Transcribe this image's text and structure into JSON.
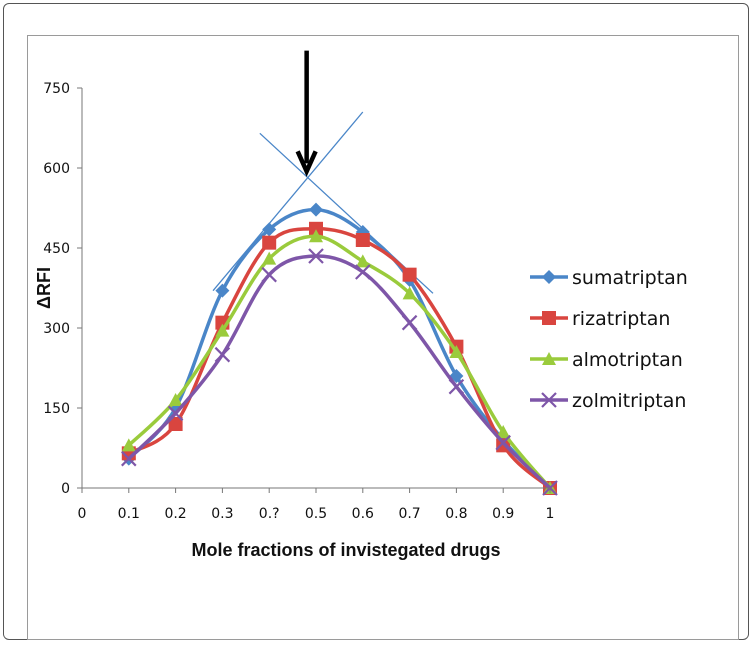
{
  "chart_data": {
    "type": "line",
    "title": "",
    "xlabel": "Mole fractions of invistegated drugs",
    "ylabel": "ΔRFI",
    "x_tick_labels": [
      "0",
      "0.1",
      "0.2",
      "0.3",
      "0.?",
      "0.5",
      "0.6",
      "0.7",
      "0.8",
      "0.9",
      "1"
    ],
    "y_tick_labels": [
      "0",
      "150",
      "300",
      "450",
      "600",
      "750"
    ],
    "xlim": [
      0,
      1
    ],
    "ylim": [
      0,
      750
    ],
    "legend_position": "right",
    "x": [
      0.1,
      0.2,
      0.3,
      0.4,
      0.5,
      0.6,
      0.7,
      0.8,
      0.9,
      1.0
    ],
    "series": [
      {
        "name": "sumatriptan",
        "color": "#4a86c8",
        "marker": "diamond",
        "values": [
          55,
          150,
          370,
          485,
          522,
          480,
          390,
          210,
          90,
          0
        ]
      },
      {
        "name": "rizatriptan",
        "color": "#d9453f",
        "marker": "square",
        "values": [
          65,
          120,
          310,
          460,
          486,
          465,
          400,
          265,
          80,
          0
        ]
      },
      {
        "name": "almotriptan",
        "color": "#9acb3c",
        "marker": "triangle",
        "values": [
          80,
          165,
          295,
          430,
          472,
          425,
          365,
          255,
          105,
          0
        ]
      },
      {
        "name": "zolmitriptan",
        "color": "#7e56a8",
        "marker": "x",
        "values": [
          55,
          140,
          250,
          400,
          435,
          405,
          310,
          190,
          85,
          0
        ]
      }
    ],
    "annotations": {
      "tangent_lines": [
        {
          "from": [
            0.28,
            370
          ],
          "to": [
            0.6,
            705
          ]
        },
        {
          "from": [
            0.38,
            665
          ],
          "to": [
            0.75,
            365
          ]
        }
      ],
      "arrow": {
        "x": 0.48,
        "y_top": 820,
        "y_bottom": 590
      },
      "tangent_color": "#4a86c8"
    }
  }
}
